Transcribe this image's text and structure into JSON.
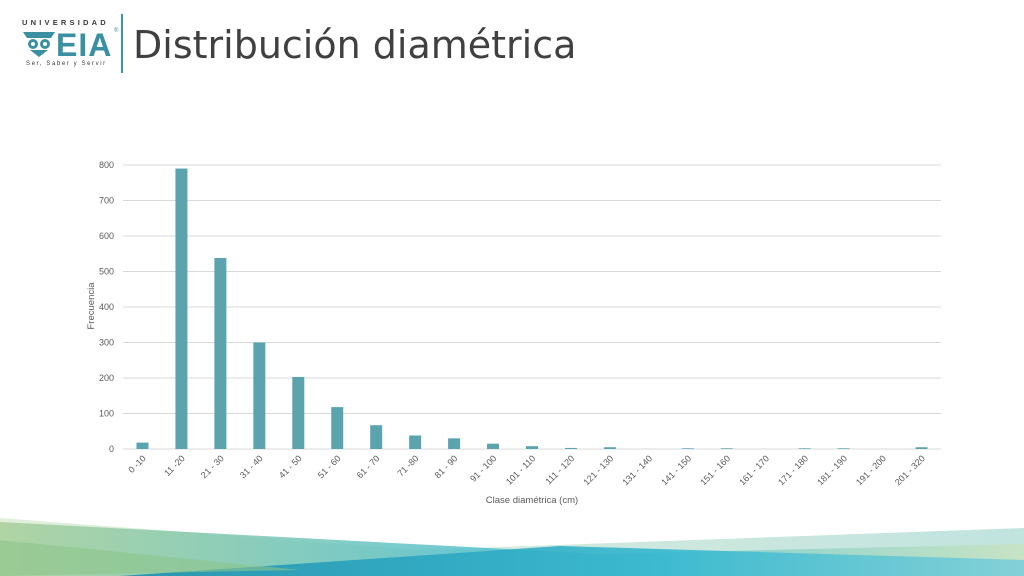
{
  "header": {
    "title": "Distribución diamétrica",
    "logo": {
      "top_text": "UNIVERSIDAD",
      "main_text": "EIA",
      "registered": "®",
      "tagline": "Ser, Saber y Servir"
    }
  },
  "colors": {
    "bar": "#5ba4ae",
    "accent": "#3e95a8",
    "grid": "#d9d9d9",
    "axis_text": "#595959"
  },
  "chart_data": {
    "type": "bar",
    "categories": [
      "0 -10",
      "11 -20",
      "21 - 30",
      "31 - 40",
      "41 - 50",
      "51 - 60",
      "61 - 70",
      "71 -80",
      "81 - 90",
      "91 - 100",
      "101 - 110",
      "111 - 120",
      "121 - 130",
      "131 - 140",
      "141 - 150",
      "151 - 160",
      "161 - 170",
      "171 - 180",
      "181 - 190",
      "191 - 200",
      "201 - 320"
    ],
    "values": [
      18,
      790,
      538,
      300,
      203,
      118,
      67,
      38,
      30,
      15,
      8,
      3,
      5,
      0,
      2,
      2,
      0,
      2,
      2,
      0,
      5
    ],
    "title": "",
    "xlabel": "Clase diamétrica (cm)",
    "ylabel": "Frecuencia",
    "ylim": [
      0,
      800
    ],
    "yticks": [
      0,
      100,
      200,
      300,
      400,
      500,
      600,
      700,
      800
    ],
    "grid": true,
    "legend": "none"
  }
}
